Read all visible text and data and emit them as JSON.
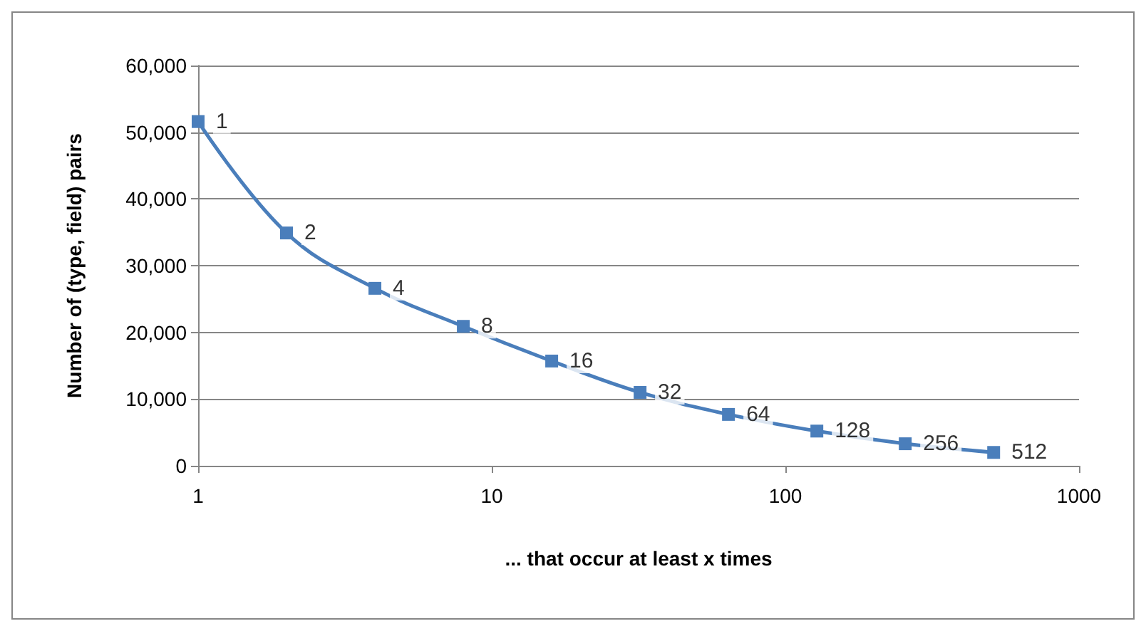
{
  "chart_data": {
    "type": "line",
    "xlabel": "... that occur at least x times",
    "ylabel": "Number of (type, field) pairs",
    "log": "x",
    "x": [
      1,
      2,
      4,
      8,
      16,
      32,
      64,
      128,
      256,
      512
    ],
    "series": [
      {
        "color": "#4a7ebb",
        "values": [
          51600,
          34900,
          26600,
          20900,
          15700,
          11000,
          7700,
          5200,
          3300,
          2000
        ]
      }
    ],
    "annotations": [
      {
        "text": "1",
        "x": 1,
        "y": 51600
      },
      {
        "text": "2",
        "x": 2,
        "y": 34900
      },
      {
        "text": "4",
        "x": 4,
        "y": 26600
      },
      {
        "text": "8",
        "x": 8,
        "y": 20900
      },
      {
        "text": "16",
        "x": 16,
        "y": 15700
      },
      {
        "text": "32",
        "x": 32,
        "y": 11000
      },
      {
        "text": "64",
        "x": 64,
        "y": 7700
      },
      {
        "text": "128",
        "x": 128,
        "y": 5200
      },
      {
        "text": "256",
        "x": 256,
        "y": 3300
      },
      {
        "text": "512",
        "x": 512,
        "y": 2000
      }
    ],
    "xlim": [
      1,
      1000
    ],
    "xticks": [
      1,
      10,
      100,
      1000
    ],
    "ylim": [
      0,
      60000
    ],
    "yticks": [
      {
        "value": 0,
        "label": "0"
      },
      {
        "value": 10000,
        "label": "10,000"
      },
      {
        "value": 20000,
        "label": "20,000"
      },
      {
        "value": 30000,
        "label": "30,000"
      },
      {
        "value": 40000,
        "label": "40,000"
      },
      {
        "value": 50000,
        "label": "50,000"
      },
      {
        "value": 60000,
        "label": "60,000"
      }
    ],
    "grid": "y",
    "marker": "square",
    "line_style": "solid"
  }
}
